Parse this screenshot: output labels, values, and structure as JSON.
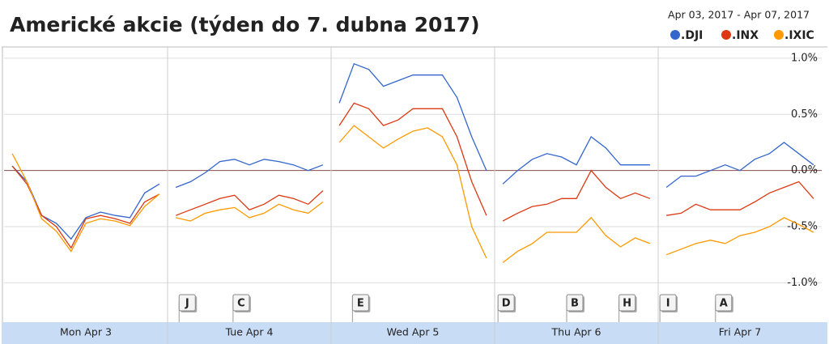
{
  "chart_data": {
    "type": "line",
    "title": "Americké akcie (týden do 7. dubna 2017)",
    "date_range": "Apr 03, 2017  -  Apr 07, 2017",
    "x": [
      0.05,
      0.14,
      0.23,
      0.32,
      0.41,
      0.5,
      0.59,
      0.68,
      0.77,
      0.86,
      0.95,
      1,
      1.05,
      1.14,
      1.23,
      1.32,
      1.41,
      1.5,
      1.59,
      1.68,
      1.77,
      1.86,
      1.95,
      2,
      2.05,
      2.14,
      2.23,
      2.32,
      2.41,
      2.5,
      2.59,
      2.68,
      2.77,
      2.86,
      2.95,
      3,
      3.05,
      3.14,
      3.23,
      3.32,
      3.41,
      3.5,
      3.59,
      3.68,
      3.77,
      3.86,
      3.95,
      4,
      4.05,
      4.14,
      4.23,
      4.32,
      4.41,
      4.5,
      4.59,
      4.68,
      4.77,
      4.86,
      4.95
    ],
    "series": [
      {
        "name": ".DJI",
        "color": "#3366cc",
        "values": [
          0.04,
          -0.1,
          -0.4,
          -0.47,
          -0.61,
          -0.42,
          -0.37,
          -0.4,
          -0.42,
          -0.2,
          -0.12,
          null,
          -0.15,
          -0.1,
          -0.02,
          0.08,
          0.1,
          0.05,
          0.1,
          0.08,
          0.05,
          0.0,
          0.05,
          null,
          0.6,
          0.95,
          0.9,
          0.75,
          0.8,
          0.85,
          0.85,
          0.85,
          0.65,
          0.3,
          0.0,
          null,
          -0.12,
          0.0,
          0.1,
          0.15,
          0.12,
          0.05,
          0.3,
          0.2,
          0.05,
          0.05,
          0.05,
          null,
          -0.15,
          -0.05,
          -0.05,
          0.0,
          0.05,
          0.0,
          0.1,
          0.15,
          0.25,
          0.15,
          0.05
        ]
      },
      {
        "name": ".INX",
        "color": "#dc3912",
        "values": [
          0.04,
          -0.12,
          -0.4,
          -0.5,
          -0.69,
          -0.43,
          -0.4,
          -0.43,
          -0.47,
          -0.28,
          -0.21,
          null,
          -0.4,
          -0.35,
          -0.3,
          -0.25,
          -0.22,
          -0.35,
          -0.3,
          -0.22,
          -0.25,
          -0.3,
          -0.18,
          null,
          0.4,
          0.6,
          0.55,
          0.4,
          0.45,
          0.55,
          0.55,
          0.55,
          0.3,
          -0.1,
          -0.4,
          null,
          -0.45,
          -0.38,
          -0.32,
          -0.3,
          -0.25,
          -0.25,
          0.0,
          -0.15,
          -0.25,
          -0.2,
          -0.25,
          null,
          -0.4,
          -0.38,
          -0.3,
          -0.35,
          -0.35,
          -0.35,
          -0.28,
          -0.2,
          -0.15,
          -0.1,
          -0.25
        ]
      },
      {
        "name": ".IXIC",
        "color": "#ff9900",
        "values": [
          0.15,
          -0.1,
          -0.43,
          -0.54,
          -0.72,
          -0.47,
          -0.43,
          -0.45,
          -0.49,
          -0.32,
          -0.21,
          null,
          -0.42,
          -0.45,
          -0.38,
          -0.35,
          -0.33,
          -0.42,
          -0.38,
          -0.3,
          -0.35,
          -0.38,
          -0.28,
          null,
          0.25,
          0.4,
          0.3,
          0.2,
          0.28,
          0.35,
          0.38,
          0.3,
          0.05,
          -0.5,
          -0.78,
          null,
          -0.82,
          -0.72,
          -0.65,
          -0.55,
          -0.55,
          -0.55,
          -0.42,
          -0.58,
          -0.68,
          -0.6,
          -0.65,
          null,
          -0.75,
          -0.7,
          -0.65,
          -0.62,
          -0.65,
          -0.58,
          -0.55,
          -0.5,
          -0.42,
          -0.48,
          -0.55
        ]
      }
    ],
    "xlim": [
      0,
      5
    ],
    "xticks": [
      {
        "value": 0.5,
        "label": "Mon Apr 3"
      },
      {
        "value": 1.5,
        "label": "Tue Apr 4"
      },
      {
        "value": 2.5,
        "label": "Wed Apr 5"
      },
      {
        "value": 3.5,
        "label": "Thu Apr 6"
      },
      {
        "value": 4.5,
        "label": "Fri Apr 7"
      }
    ],
    "ylim": [
      -1.35,
      1.1
    ],
    "yticks": [
      {
        "value": 1.0,
        "label": "1.0%"
      },
      {
        "value": 0.5,
        "label": "0.5%"
      },
      {
        "value": 0.0,
        "label": "0.0%"
      },
      {
        "value": -0.5,
        "label": "-0.5%"
      },
      {
        "value": -1.0,
        "label": "-1.0%"
      }
    ],
    "grid": true,
    "flags": [
      {
        "label": "J",
        "x": 1.12
      },
      {
        "label": "C",
        "x": 1.45
      },
      {
        "label": "E",
        "x": 2.18
      },
      {
        "label": "D",
        "x": 3.07
      },
      {
        "label": "B",
        "x": 3.49
      },
      {
        "label": "H",
        "x": 3.81
      },
      {
        "label": "I",
        "x": 4.06
      },
      {
        "label": "A",
        "x": 4.4
      }
    ]
  }
}
